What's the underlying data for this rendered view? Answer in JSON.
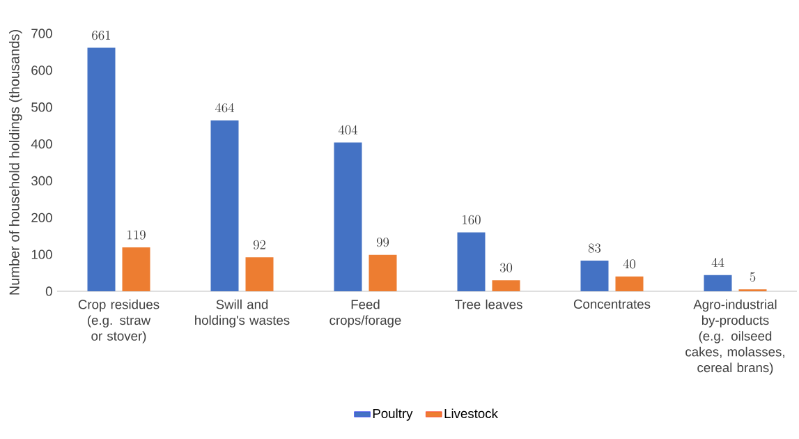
{
  "chart_data": {
    "type": "bar",
    "ylabel": "Number of household holdings (thousands)",
    "categories": [
      "Crop residues (e.g. straw or stover)",
      "Swill and holding's wastes",
      "Feed crops/forage",
      "Tree leaves",
      "Concentrates",
      "Agro-industrial by-products (e.g. oilseed cakes, molasses, cereal brans)"
    ],
    "series": [
      {
        "name": "Poultry",
        "color": "#4472c4",
        "values": [
          661,
          464,
          404,
          160,
          83,
          44
        ]
      },
      {
        "name": "Livestock",
        "color": "#ed7d31",
        "values": [
          119,
          92,
          99,
          30,
          40,
          5
        ]
      }
    ],
    "ylim": [
      0,
      700
    ],
    "yticks": [
      0,
      100,
      200,
      300,
      400,
      500,
      600,
      700
    ],
    "data_labels": true,
    "legend": "bottom"
  }
}
